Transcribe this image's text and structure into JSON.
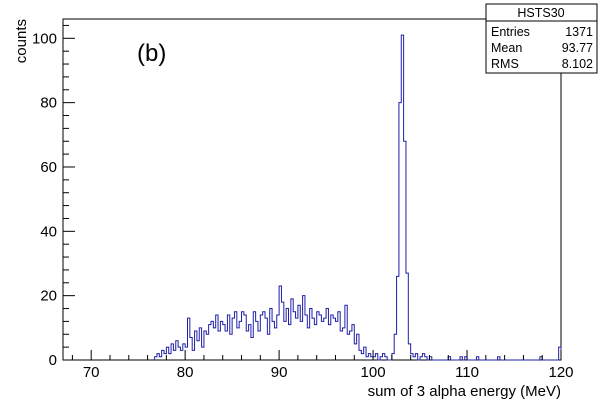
{
  "chart_data": {
    "type": "bar",
    "title": "",
    "annotation": "(b)",
    "xlabel": "sum of 3 alpha energy (MeV)",
    "ylabel": "counts",
    "xlim": [
      67,
      120
    ],
    "ylim": [
      0,
      106
    ],
    "x_ticks": [
      70,
      80,
      90,
      100,
      110,
      120
    ],
    "y_ticks": [
      0,
      20,
      40,
      60,
      80,
      100
    ],
    "grid": false,
    "bin_width": 0.25,
    "histogram": [
      [
        76.75,
        1
      ],
      [
        77.0,
        2
      ],
      [
        77.25,
        1
      ],
      [
        77.5,
        3
      ],
      [
        77.75,
        2
      ],
      [
        78.0,
        4
      ],
      [
        78.25,
        2
      ],
      [
        78.5,
        5
      ],
      [
        78.75,
        3
      ],
      [
        79.0,
        6
      ],
      [
        79.25,
        4
      ],
      [
        79.5,
        3
      ],
      [
        79.75,
        5
      ],
      [
        80.0,
        4
      ],
      [
        80.25,
        13
      ],
      [
        80.5,
        7
      ],
      [
        80.75,
        3
      ],
      [
        81.0,
        9
      ],
      [
        81.25,
        6
      ],
      [
        81.5,
        10
      ],
      [
        81.75,
        4
      ],
      [
        82.0,
        9
      ],
      [
        82.25,
        8
      ],
      [
        82.5,
        11
      ],
      [
        82.75,
        12
      ],
      [
        83.0,
        10
      ],
      [
        83.25,
        14
      ],
      [
        83.5,
        9
      ],
      [
        83.75,
        12
      ],
      [
        84.0,
        11
      ],
      [
        84.25,
        9
      ],
      [
        84.5,
        14
      ],
      [
        84.75,
        8
      ],
      [
        85.0,
        13
      ],
      [
        85.25,
        15
      ],
      [
        85.5,
        10
      ],
      [
        85.75,
        12
      ],
      [
        86.0,
        15
      ],
      [
        86.25,
        14
      ],
      [
        86.5,
        9
      ],
      [
        86.75,
        11
      ],
      [
        87.0,
        7
      ],
      [
        87.25,
        15
      ],
      [
        87.5,
        12
      ],
      [
        87.75,
        9
      ],
      [
        88.0,
        14
      ],
      [
        88.25,
        15
      ],
      [
        88.5,
        13
      ],
      [
        88.75,
        8
      ],
      [
        89.0,
        16
      ],
      [
        89.25,
        12
      ],
      [
        89.5,
        10
      ],
      [
        89.75,
        14
      ],
      [
        90.0,
        23
      ],
      [
        90.25,
        18
      ],
      [
        90.5,
        12
      ],
      [
        90.75,
        16
      ],
      [
        91.0,
        11
      ],
      [
        91.25,
        19
      ],
      [
        91.5,
        15
      ],
      [
        91.75,
        13
      ],
      [
        92.0,
        17
      ],
      [
        92.25,
        12
      ],
      [
        92.5,
        20
      ],
      [
        92.75,
        14
      ],
      [
        93.0,
        10
      ],
      [
        93.25,
        16
      ],
      [
        93.5,
        13
      ],
      [
        93.75,
        11
      ],
      [
        94.0,
        15
      ],
      [
        94.25,
        14
      ],
      [
        94.5,
        12
      ],
      [
        94.75,
        13
      ],
      [
        95.0,
        16
      ],
      [
        95.25,
        11
      ],
      [
        95.5,
        14
      ],
      [
        95.75,
        13
      ],
      [
        96.0,
        12
      ],
      [
        96.25,
        15
      ],
      [
        96.5,
        9
      ],
      [
        96.75,
        10
      ],
      [
        97.0,
        17
      ],
      [
        97.25,
        8
      ],
      [
        97.5,
        9
      ],
      [
        97.75,
        11
      ],
      [
        98.0,
        5
      ],
      [
        98.25,
        8
      ],
      [
        98.5,
        3
      ],
      [
        98.75,
        2
      ],
      [
        99.0,
        4
      ],
      [
        99.25,
        1
      ],
      [
        99.5,
        2
      ],
      [
        99.75,
        1
      ],
      [
        100.0,
        1
      ],
      [
        100.25,
        2
      ],
      [
        100.5,
        0
      ],
      [
        100.75,
        1
      ],
      [
        101.0,
        2
      ],
      [
        101.25,
        1
      ],
      [
        101.5,
        0
      ],
      [
        101.75,
        0
      ],
      [
        102.0,
        2
      ],
      [
        102.25,
        8
      ],
      [
        102.5,
        26
      ],
      [
        102.75,
        80
      ],
      [
        103.0,
        101
      ],
      [
        103.25,
        68
      ],
      [
        103.5,
        27
      ],
      [
        103.75,
        5
      ],
      [
        104.0,
        2
      ],
      [
        104.25,
        1
      ],
      [
        104.5,
        2
      ],
      [
        104.75,
        0
      ],
      [
        105.0,
        1
      ],
      [
        105.25,
        2
      ],
      [
        105.5,
        1
      ],
      [
        105.75,
        0
      ],
      [
        106.0,
        1
      ],
      [
        106.25,
        0
      ],
      [
        106.5,
        0
      ],
      [
        106.75,
        0
      ],
      [
        107.0,
        0
      ],
      [
        107.25,
        0
      ],
      [
        107.5,
        0
      ],
      [
        107.75,
        0
      ],
      [
        108.0,
        1
      ],
      [
        108.25,
        0
      ],
      [
        108.5,
        0
      ],
      [
        108.75,
        0
      ],
      [
        109.0,
        0
      ],
      [
        109.25,
        1
      ],
      [
        109.5,
        0
      ],
      [
        109.75,
        1
      ],
      [
        110.0,
        0
      ],
      [
        110.25,
        0
      ],
      [
        110.5,
        0
      ],
      [
        110.75,
        0
      ],
      [
        111.0,
        1
      ],
      [
        111.25,
        0
      ],
      [
        111.5,
        0
      ],
      [
        111.75,
        0
      ],
      [
        112.0,
        0
      ],
      [
        112.25,
        0
      ],
      [
        112.5,
        0
      ],
      [
        112.75,
        0
      ],
      [
        113.0,
        0
      ],
      [
        113.25,
        1
      ],
      [
        113.5,
        0
      ],
      [
        113.75,
        0
      ],
      [
        114.0,
        0
      ],
      [
        114.25,
        0
      ],
      [
        114.5,
        0
      ],
      [
        114.75,
        0
      ],
      [
        115.0,
        0
      ],
      [
        115.25,
        0
      ],
      [
        115.5,
        0
      ],
      [
        115.75,
        0
      ],
      [
        116.0,
        0
      ],
      [
        116.25,
        0
      ],
      [
        116.5,
        0
      ],
      [
        116.75,
        0
      ],
      [
        117.0,
        0
      ],
      [
        117.25,
        0
      ],
      [
        117.5,
        0
      ],
      [
        117.75,
        1
      ],
      [
        118.0,
        0
      ],
      [
        118.25,
        0
      ],
      [
        118.5,
        0
      ],
      [
        118.75,
        0
      ],
      [
        119.0,
        0
      ],
      [
        119.25,
        0
      ],
      [
        119.5,
        0
      ],
      [
        119.75,
        4
      ]
    ],
    "stats_box": {
      "title": "HSTS30",
      "rows": [
        {
          "label": "Entries",
          "value": "1371"
        },
        {
          "label": "Mean",
          "value": "93.77"
        },
        {
          "label": "RMS",
          "value": "8.102"
        }
      ]
    },
    "line_color": "#1f1fa8"
  }
}
